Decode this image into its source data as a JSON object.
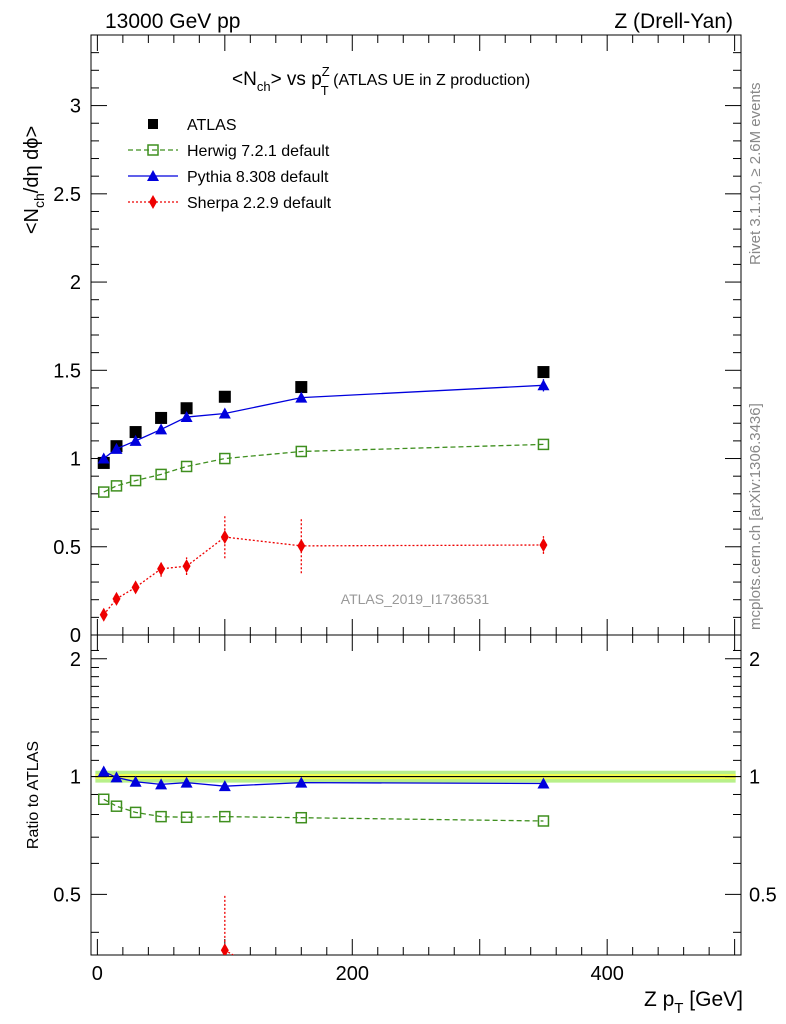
{
  "header": {
    "energy": "13000 GeV pp",
    "process": "Z (Drell-Yan)"
  },
  "side": {
    "rivet": "Rivet 3.1.10, ≥ 2.6M events",
    "source": "mcplots.cern.ch [arXiv:1306.3436]"
  },
  "colors": {
    "atlas": "#000000",
    "herwig": "#3f8f1f",
    "pythia": "#0000dd",
    "sherpa": "#ee0000",
    "band_inner": "#f2ff52",
    "band_outer": "#b8f08a"
  },
  "chart_data": [
    {
      "type": "scatter",
      "title_main": "<N",
      "title_sub": "ch",
      "title_mid": "> vs p",
      "title_sup": "Z",
      "title_sub2": "T",
      "title_tail": " (ATLAS UE in Z production)",
      "ylabel": "<N",
      "ylabel_sub": "ch",
      "ylabel_tail": "/dη dϕ>",
      "watermark": "ATLAS_2019_I1736531",
      "xlim": [
        -5,
        505
      ],
      "ylim": [
        0,
        3.4
      ],
      "yticks": [
        "0",
        "0.5",
        "1",
        "1.5",
        "2",
        "2.5",
        "3"
      ],
      "series": [
        {
          "name": "ATLAS",
          "key": "atlas",
          "marker": "square-filled",
          "line": "none",
          "x": [
            5,
            15,
            30,
            50,
            70,
            100,
            160,
            350
          ],
          "y": [
            0.975,
            1.07,
            1.15,
            1.23,
            1.285,
            1.35,
            1.405,
            1.49
          ]
        },
        {
          "name": "Herwig 7.2.1 default",
          "key": "herwig",
          "marker": "square-open",
          "line": "dashed",
          "x": [
            5,
            15,
            30,
            50,
            70,
            100,
            160,
            350
          ],
          "y": [
            0.81,
            0.845,
            0.875,
            0.91,
            0.955,
            1.0,
            1.04,
            1.08
          ]
        },
        {
          "name": "Pythia 8.308 default",
          "key": "pythia",
          "marker": "triangle",
          "line": "solid",
          "x": [
            5,
            15,
            30,
            50,
            70,
            100,
            160,
            350
          ],
          "y": [
            1.0,
            1.055,
            1.1,
            1.165,
            1.235,
            1.255,
            1.345,
            1.415
          ],
          "err": [
            0,
            0,
            0,
            0,
            0,
            0,
            0,
            0.035
          ]
        },
        {
          "name": "Sherpa 2.2.9 default",
          "key": "sherpa",
          "marker": "diamond",
          "line": "dotted",
          "x": [
            5,
            15,
            30,
            50,
            70,
            100,
            160,
            350
          ],
          "y": [
            0.115,
            0.205,
            0.27,
            0.375,
            0.39,
            0.555,
            0.505,
            0.51
          ],
          "err": [
            0.015,
            0.02,
            0.025,
            0.045,
            0.05,
            0.12,
            0.155,
            0.05
          ]
        }
      ]
    },
    {
      "type": "line",
      "ylabel": "Ratio to ATLAS",
      "xlabel": "Z p",
      "xlabel_sub": "T",
      "xlabel_tail": " [GeV]",
      "xlim": [
        -5,
        505
      ],
      "ylim": [
        0.35,
        2.3
      ],
      "yticks": [
        "0.5",
        "1",
        "2"
      ],
      "xticks": [
        "0",
        "200",
        "400"
      ],
      "band": {
        "inner": [
          0.985,
          1.015
        ],
        "outer": [
          0.965,
          1.035
        ]
      },
      "series": [
        {
          "name": "Herwig 7.2.1 default",
          "key": "herwig",
          "x": [
            5,
            15,
            30,
            50,
            70,
            100,
            160,
            350
          ],
          "y": [
            0.875,
            0.84,
            0.81,
            0.79,
            0.787,
            0.79,
            0.785,
            0.77
          ]
        },
        {
          "name": "Pythia 8.308 default",
          "key": "pythia",
          "x": [
            5,
            15,
            30,
            50,
            70,
            100,
            160,
            350
          ],
          "y": [
            1.03,
            0.995,
            0.97,
            0.955,
            0.965,
            0.945,
            0.965,
            0.96
          ],
          "err": [
            0,
            0,
            0,
            0,
            0,
            0,
            0,
            0.025
          ]
        },
        {
          "name": "Sherpa 2.2.9 default",
          "key": "sherpa",
          "x": [
            100,
            120
          ],
          "y": [
            0.36,
            0.33
          ],
          "err": [
            0.14,
            0
          ]
        }
      ]
    }
  ]
}
